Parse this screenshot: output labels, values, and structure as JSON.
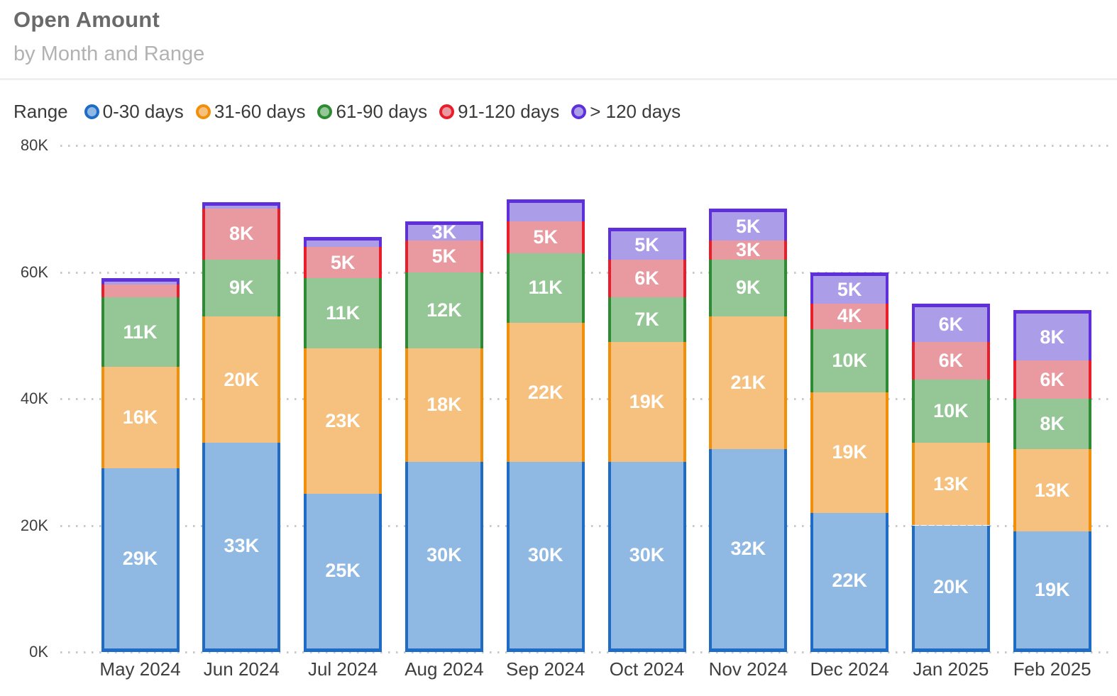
{
  "chart_data": {
    "type": "bar",
    "stacked": true,
    "title": "Open Amount",
    "subtitle": "by Month and Range",
    "legend_title": "Range",
    "legend_position": "top",
    "grid": "dotted-horizontal",
    "value_unit": "thousands",
    "categories": [
      "May 2024",
      "Jun 2024",
      "Jul 2024",
      "Aug 2024",
      "Sep 2024",
      "Oct 2024",
      "Nov 2024",
      "Dec 2024",
      "Jan 2025",
      "Feb 2025"
    ],
    "series": [
      {
        "name": "0-30 days",
        "stroke": "#1f6cc7",
        "fill": "#8fb9e2",
        "values": [
          29,
          33,
          25,
          30,
          30,
          30,
          32,
          22,
          20,
          19
        ],
        "labels": [
          "29K",
          "33K",
          "25K",
          "30K",
          "30K",
          "30K",
          "32K",
          "22K",
          "20K",
          "19K"
        ]
      },
      {
        "name": "31-60 days",
        "stroke": "#f18f0a",
        "fill": "#f6c17e",
        "values": [
          16,
          20,
          23,
          18,
          22,
          19,
          21,
          19,
          13,
          13
        ],
        "labels": [
          "16K",
          "20K",
          "23K",
          "18K",
          "22K",
          "19K",
          "21K",
          "19K",
          "13K",
          "13K"
        ]
      },
      {
        "name": "61-90 days",
        "stroke": "#2e8b33",
        "fill": "#94c795",
        "values": [
          11,
          9,
          11,
          12,
          11,
          7,
          9,
          10,
          10,
          8
        ],
        "labels": [
          "11K",
          "9K",
          "11K",
          "12K",
          "11K",
          "7K",
          "9K",
          "10K",
          "10K",
          "8K"
        ]
      },
      {
        "name": "91-120 days",
        "stroke": "#e81f2b",
        "fill": "#e99aa0",
        "values": [
          2,
          8,
          5,
          5,
          5,
          6,
          3,
          4,
          6,
          6
        ],
        "labels": [
          "",
          "8K",
          "5K",
          "5K",
          "5K",
          "6K",
          "3K",
          "4K",
          "6K",
          "6K"
        ]
      },
      {
        "name": "> 120 days",
        "stroke": "#5f30d9",
        "fill": "#ac9de9",
        "values": [
          1,
          1,
          1.5,
          3,
          3.5,
          5,
          5,
          5,
          6,
          8
        ],
        "labels": [
          "",
          "",
          "",
          "3K",
          "",
          "5K",
          "5K",
          "5K",
          "6K",
          "8K"
        ]
      }
    ],
    "y_axis": {
      "min": 0,
      "max": 80,
      "ticks": [
        {
          "value": 0,
          "label": "0K"
        },
        {
          "value": 20,
          "label": "20K"
        },
        {
          "value": 40,
          "label": "40K"
        },
        {
          "value": 60,
          "label": "60K"
        },
        {
          "value": 80,
          "label": "80K"
        }
      ]
    },
    "gridline_color": "#c9c9c9"
  }
}
